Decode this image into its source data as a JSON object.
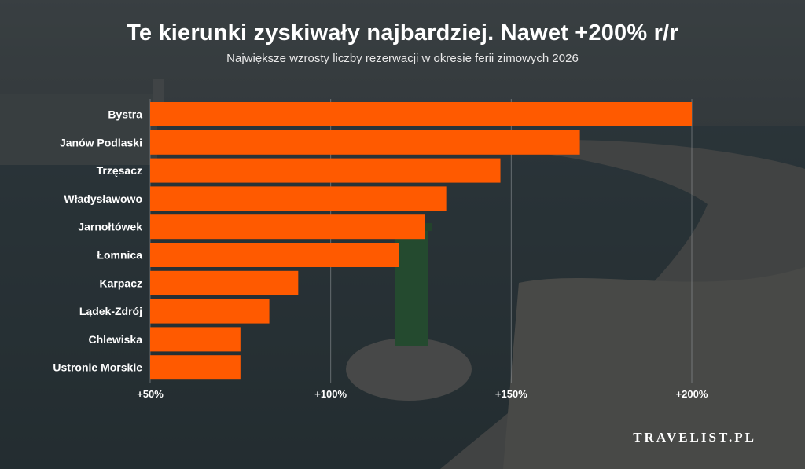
{
  "title": "Te kierunki zyskiwały najbardziej. Nawet +200% r/r",
  "subtitle": "Największe wzrosty liczby rezerwacji w okresie ferii zimowych 2026",
  "brand": "TRAVELIST.PL",
  "colors": {
    "bar": "#ff5a00",
    "gridline": "#9a9fa2",
    "text": "#ffffff"
  },
  "chart_data": {
    "type": "bar",
    "orientation": "horizontal",
    "categories": [
      "Bystra",
      "Janów Podlaski",
      "Trzęsacz",
      "Władysławowo",
      "Jarnołtówek",
      "Łomnica",
      "Karpacz",
      "Lądek-Zdrój",
      "Chlewiska",
      "Ustronie Morskie"
    ],
    "values": [
      200,
      169,
      147,
      132,
      126,
      119,
      91,
      83,
      75,
      75
    ],
    "xlim": [
      50,
      200
    ],
    "xticks": [
      50,
      100,
      150,
      200
    ],
    "xtick_labels": [
      "+50%",
      "+100%",
      "+150%",
      "+200%"
    ],
    "grid": true,
    "title": "Te kierunki zyskiwały najbardziej. Nawet +200% r/r",
    "xlabel": "",
    "ylabel": ""
  }
}
